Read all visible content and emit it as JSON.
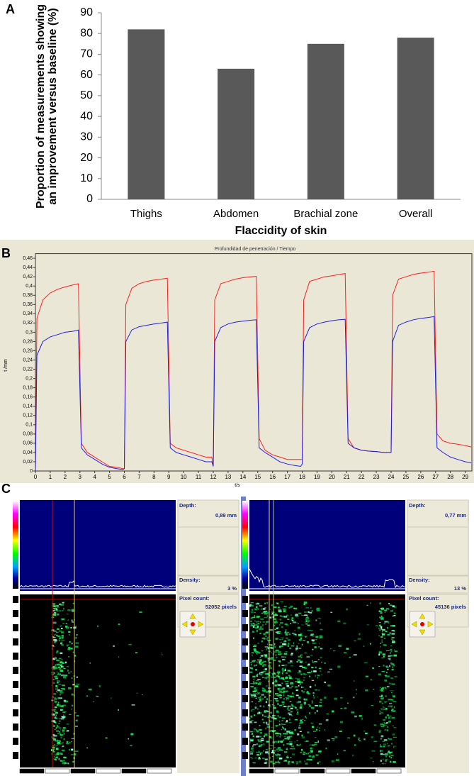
{
  "chart_data": [
    {
      "type": "bar",
      "panel_label": "A",
      "y_label": [
        "Proportion of measurements showing",
        "an improvement versus baseline (%)"
      ],
      "x_label": "Flaccidity of skin",
      "categories": [
        "Thighs",
        "Abdomen",
        "Brachial zone",
        "Overall"
      ],
      "values": [
        82,
        63,
        75,
        78
      ],
      "color": "#595959",
      "ylim": [
        0,
        90
      ],
      "yticks": [
        0,
        10,
        20,
        30,
        40,
        50,
        60,
        70,
        80,
        90
      ]
    },
    {
      "type": "line",
      "panel_label": "B",
      "title": "Profundidad de penetración / Tiempo",
      "x_label": "t/s",
      "y_label": "t /mm",
      "x": [
        0,
        0.1,
        0.5,
        1,
        1.5,
        2,
        2.5,
        2.9,
        3.1,
        3.5,
        4,
        4.5,
        5,
        5.5,
        5.9,
        6,
        6.1,
        6.5,
        7,
        7.5,
        8,
        8.5,
        8.9,
        9.1,
        9.5,
        10,
        10.5,
        11,
        11.5,
        11.9,
        12,
        12.1,
        12.5,
        13,
        13.5,
        14,
        14.5,
        14.9,
        15.1,
        15.5,
        16,
        16.5,
        17,
        17.5,
        17.9,
        18,
        18.1,
        18.5,
        19,
        19.5,
        20,
        20.5,
        20.9,
        21.1,
        21.5,
        22,
        22.5,
        23,
        23.5,
        23.9,
        24,
        24.1,
        24.5,
        25,
        25.5,
        26,
        26.5,
        26.9,
        27.1,
        27.5,
        28,
        28.5,
        29,
        29.4
      ],
      "series": [
        {
          "color": "#ff2020",
          "values": [
            0,
            0.33,
            0.37,
            0.385,
            0.393,
            0.398,
            0.402,
            0.405,
            0.06,
            0.04,
            0.03,
            0.02,
            0.01,
            0.008,
            0.005,
            0.005,
            0.36,
            0.395,
            0.405,
            0.41,
            0.413,
            0.415,
            0.417,
            0.06,
            0.05,
            0.045,
            0.04,
            0.035,
            0.03,
            0.03,
            0.01,
            0.37,
            0.405,
            0.41,
            0.415,
            0.418,
            0.42,
            0.421,
            0.07,
            0.045,
            0.035,
            0.03,
            0.025,
            0.025,
            0.025,
            0.025,
            0.37,
            0.41,
            0.415,
            0.42,
            0.422,
            0.425,
            0.427,
            0.07,
            0.05,
            0.045,
            0.043,
            0.042,
            0.04,
            0.04,
            0.04,
            0.38,
            0.415,
            0.42,
            0.425,
            0.428,
            0.43,
            0.432,
            0.08,
            0.065,
            0.06,
            0.058,
            0.055,
            0.052
          ]
        },
        {
          "color": "#2020e0",
          "values": [
            0,
            0.25,
            0.28,
            0.29,
            0.295,
            0.3,
            0.302,
            0.305,
            0.05,
            0.035,
            0.025,
            0.015,
            0.008,
            0.005,
            0.003,
            0.005,
            0.28,
            0.305,
            0.312,
            0.315,
            0.318,
            0.32,
            0.322,
            0.05,
            0.04,
            0.035,
            0.03,
            0.025,
            0.02,
            0.02,
            0.01,
            0.28,
            0.31,
            0.318,
            0.322,
            0.324,
            0.326,
            0.327,
            0.05,
            0.04,
            0.03,
            0.02,
            0.015,
            0.012,
            0.01,
            0.015,
            0.28,
            0.31,
            0.318,
            0.322,
            0.325,
            0.327,
            0.328,
            0.06,
            0.05,
            0.045,
            0.043,
            0.042,
            0.04,
            0.04,
            0.04,
            0.28,
            0.315,
            0.322,
            0.327,
            0.33,
            0.332,
            0.334,
            0.05,
            0.04,
            0.03,
            0.025,
            0.02,
            0.018
          ]
        }
      ],
      "xlim": [
        0,
        29.45
      ],
      "ylim": [
        0,
        0.47
      ],
      "xticks": [
        0,
        1,
        2,
        3,
        4,
        5,
        6,
        7,
        8,
        9,
        10,
        11,
        12,
        13,
        14,
        15,
        16,
        17,
        18,
        19,
        20,
        21,
        22,
        23,
        24,
        25,
        26,
        27,
        28,
        29
      ],
      "yticks": [
        0,
        {
          "value": 0.02,
          "label": "0,02"
        },
        {
          "value": 0.04,
          "label": "0,04"
        },
        {
          "value": 0.06,
          "label": "0,06"
        },
        {
          "value": 0.08,
          "label": "0,08"
        },
        {
          "value": 0.1,
          "label": "0,1"
        },
        {
          "value": 0.12,
          "label": "0,12"
        },
        {
          "value": 0.14,
          "label": "0,14"
        },
        {
          "value": 0.16,
          "label": "0,16"
        },
        {
          "value": 0.18,
          "label": "0,18"
        },
        {
          "value": 0.2,
          "label": "0,2"
        },
        {
          "value": 0.22,
          "label": "0,22"
        },
        {
          "value": 0.24,
          "label": "0,24"
        },
        {
          "value": 0.26,
          "label": "0,26"
        },
        {
          "value": 0.28,
          "label": "0,28"
        },
        {
          "value": 0.3,
          "label": "0,3"
        },
        {
          "value": 0.32,
          "label": "0,32"
        },
        {
          "value": 0.34,
          "label": "0,34"
        },
        {
          "value": 0.36,
          "label": "0,36"
        },
        {
          "value": 0.38,
          "label": "0,38"
        },
        {
          "value": 0.4,
          "label": "0,4"
        },
        {
          "value": 0.42,
          "label": "0,42"
        },
        {
          "value": 0.44,
          "label": "0,44"
        },
        {
          "value": 0.46,
          "label": "0,46"
        }
      ]
    }
  ],
  "panel_c": {
    "label": "C",
    "left": {
      "depth_label": "Depth:",
      "depth": "0,89 mm",
      "density_label": "Density:",
      "density": "3 %",
      "pixel_label": "Pixel count:",
      "pixels": "52052 pixels"
    },
    "right": {
      "depth_label": "Depth:",
      "depth": "0,77 mm",
      "density_label": "Density:",
      "density": "13 %",
      "pixel_label": "Pixel count:",
      "pixels": "45136 pixels"
    }
  }
}
